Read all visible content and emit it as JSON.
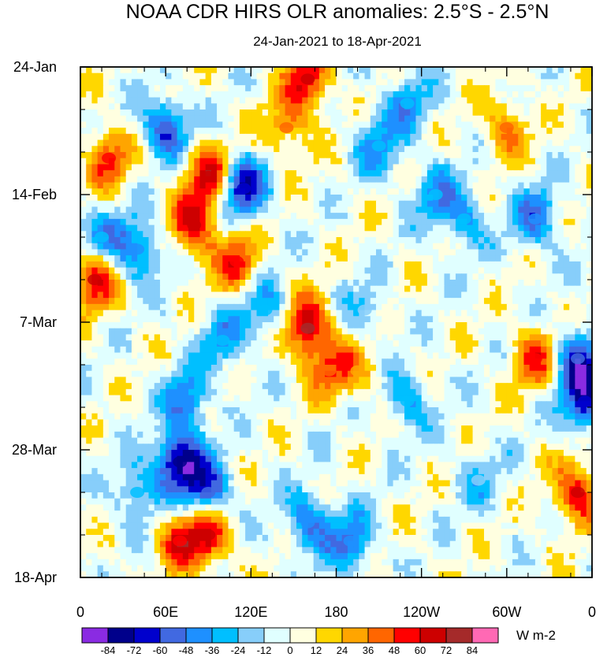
{
  "chart_data": {
    "type": "heatmap",
    "title": "NOAA CDR HIRS OLR anomalies: 2.5°S - 2.5°N",
    "subtitle": "24-Jan-2021 to 18-Apr-2021",
    "xlabel": "",
    "ylabel": "",
    "x_ticks": [
      "0",
      "60E",
      "120E",
      "180",
      "120W",
      "60W",
      "0"
    ],
    "x_range_deg_east": [
      0,
      360
    ],
    "y_ticks": [
      "24-Jan",
      "14-Feb",
      "7-Mar",
      "28-Mar",
      "18-Apr"
    ],
    "y_range_days": [
      0,
      84
    ],
    "colorbar": {
      "units": "W m-2",
      "levels": [
        "-84",
        "-72",
        "-60",
        "-48",
        "-36",
        "-24",
        "-12",
        "0",
        "12",
        "24",
        "36",
        "48",
        "60",
        "72",
        "84"
      ],
      "colors": [
        "#8a2be2",
        "#00008b",
        "#0000cd",
        "#4169e1",
        "#1e90ff",
        "#00bfff",
        "#87cefa",
        "#e0ffff",
        "#ffffe0",
        "#ffd700",
        "#ffa500",
        "#ff6600",
        "#ff0000",
        "#cd0000",
        "#a52a2a",
        "#ff69b4"
      ]
    },
    "anomaly_features": [
      {
        "lon": 160,
        "day": 2,
        "value": 60
      },
      {
        "lon": 145,
        "day": 10,
        "value": 36
      },
      {
        "lon": 20,
        "day": 15,
        "value": 48
      },
      {
        "lon": 10,
        "day": 35,
        "value": 60
      },
      {
        "lon": 90,
        "day": 18,
        "value": 60
      },
      {
        "lon": 80,
        "day": 26,
        "value": 60
      },
      {
        "lon": 110,
        "day": 32,
        "value": 48
      },
      {
        "lon": 160,
        "day": 43,
        "value": 72
      },
      {
        "lon": 175,
        "day": 50,
        "value": 36
      },
      {
        "lon": 90,
        "day": 77,
        "value": 60
      },
      {
        "lon": 70,
        "day": 78,
        "value": 48
      },
      {
        "lon": 350,
        "day": 70,
        "value": 60
      },
      {
        "lon": 300,
        "day": 10,
        "value": 36
      },
      {
        "lon": 320,
        "day": 48,
        "value": 48
      },
      {
        "lon": 195,
        "day": 50,
        "value": 24
      },
      {
        "lon": 60,
        "day": 10,
        "value": -60
      },
      {
        "lon": 115,
        "day": 20,
        "value": -72
      },
      {
        "lon": 40,
        "day": 30,
        "value": -48
      },
      {
        "lon": 70,
        "day": 65,
        "value": -84
      },
      {
        "lon": 90,
        "day": 70,
        "value": -60
      },
      {
        "lon": 75,
        "day": 55,
        "value": -48
      },
      {
        "lon": 160,
        "day": 75,
        "value": -48
      },
      {
        "lon": 190,
        "day": 78,
        "value": -48
      },
      {
        "lon": 355,
        "day": 55,
        "value": -72
      },
      {
        "lon": 350,
        "day": 48,
        "value": -60
      },
      {
        "lon": 230,
        "day": 6,
        "value": -36
      },
      {
        "lon": 210,
        "day": 13,
        "value": -36
      },
      {
        "lon": 250,
        "day": 21,
        "value": -36
      },
      {
        "lon": 270,
        "day": 25,
        "value": -36
      },
      {
        "lon": 320,
        "day": 25,
        "value": -48
      },
      {
        "lon": 230,
        "day": 55,
        "value": -36
      },
      {
        "lon": 15,
        "day": 28,
        "value": -36
      },
      {
        "lon": 40,
        "day": 70,
        "value": -36
      },
      {
        "lon": 280,
        "day": 68,
        "value": -24
      },
      {
        "lon": 200,
        "day": 40,
        "value": -24
      },
      {
        "lon": 130,
        "day": 40,
        "value": -36
      },
      {
        "lon": 100,
        "day": 45,
        "value": -36
      }
    ]
  }
}
